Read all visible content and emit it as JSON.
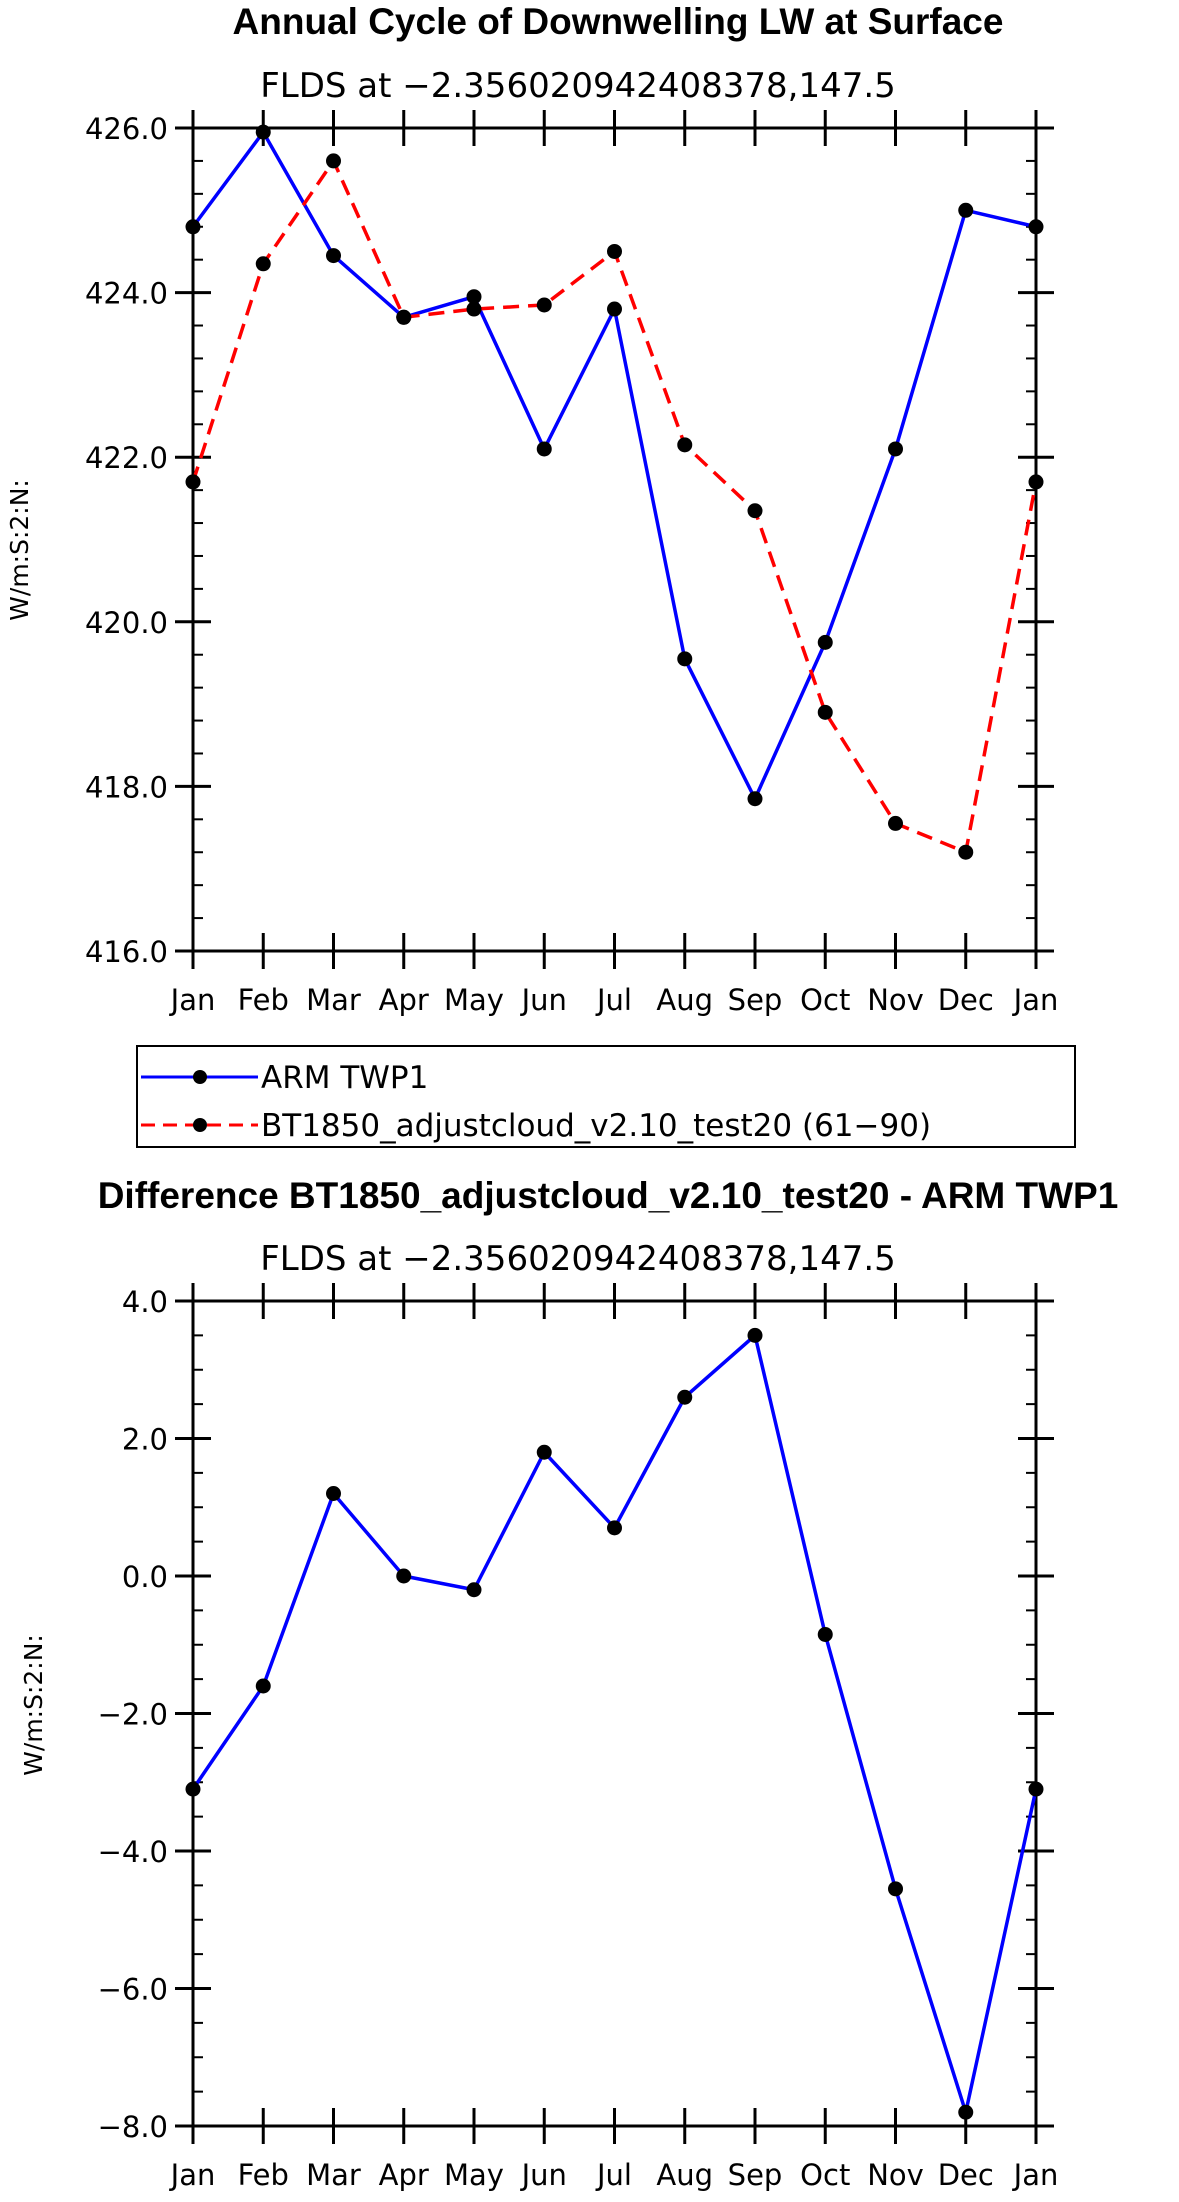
{
  "chart_data": [
    {
      "type": "line",
      "title": "Annual Cycle of Downwelling LW at Surface",
      "subtitle": "FLDS at −2.356020942408378,147.5",
      "xlabel": "",
      "ylabel": "W/m:S:2:N:",
      "categories": [
        "Jan",
        "Feb",
        "Mar",
        "Apr",
        "May",
        "Jun",
        "Jul",
        "Aug",
        "Sep",
        "Oct",
        "Nov",
        "Dec",
        "Jan"
      ],
      "ylim": [
        416.0,
        426.0
      ],
      "yticks": [
        "416.0",
        "418.0",
        "420.0",
        "422.0",
        "424.0",
        "426.0"
      ],
      "series": [
        {
          "name": "ARM TWP1",
          "color": "#0000ff",
          "dashed": false,
          "values": [
            424.8,
            425.95,
            424.45,
            423.7,
            423.95,
            422.1,
            423.8,
            419.55,
            417.85,
            419.75,
            422.1,
            425.0,
            424.8
          ]
        },
        {
          "name": "BT1850_adjustcloud_v2.10_test20 (61−90)",
          "color": "#ff0000",
          "dashed": true,
          "values": [
            421.7,
            424.35,
            425.6,
            423.7,
            423.8,
            423.85,
            424.5,
            422.15,
            421.35,
            418.9,
            417.55,
            417.2,
            421.7
          ]
        }
      ],
      "legend": "below"
    },
    {
      "type": "line",
      "title": "Difference BT1850_adjustcloud_v2.10_test20 - ARM TWP1",
      "subtitle": "FLDS at −2.356020942408378,147.5",
      "xlabel": "",
      "ylabel": "W/m:S:2:N:",
      "categories": [
        "Jan",
        "Feb",
        "Mar",
        "Apr",
        "May",
        "Jun",
        "Jul",
        "Aug",
        "Sep",
        "Oct",
        "Nov",
        "Dec",
        "Jan"
      ],
      "ylim": [
        -8.0,
        4.0
      ],
      "yticks": [
        "−8.0",
        "−6.0",
        "−4.0",
        "−2.0",
        "0.0",
        "2.0",
        "4.0"
      ],
      "series": [
        {
          "name": "Difference",
          "color": "#0000ff",
          "dashed": false,
          "values": [
            -3.1,
            -1.6,
            1.2,
            0.0,
            -0.2,
            1.8,
            0.7,
            2.6,
            3.5,
            -0.85,
            -4.55,
            -7.8,
            -3.1
          ]
        }
      ]
    }
  ]
}
